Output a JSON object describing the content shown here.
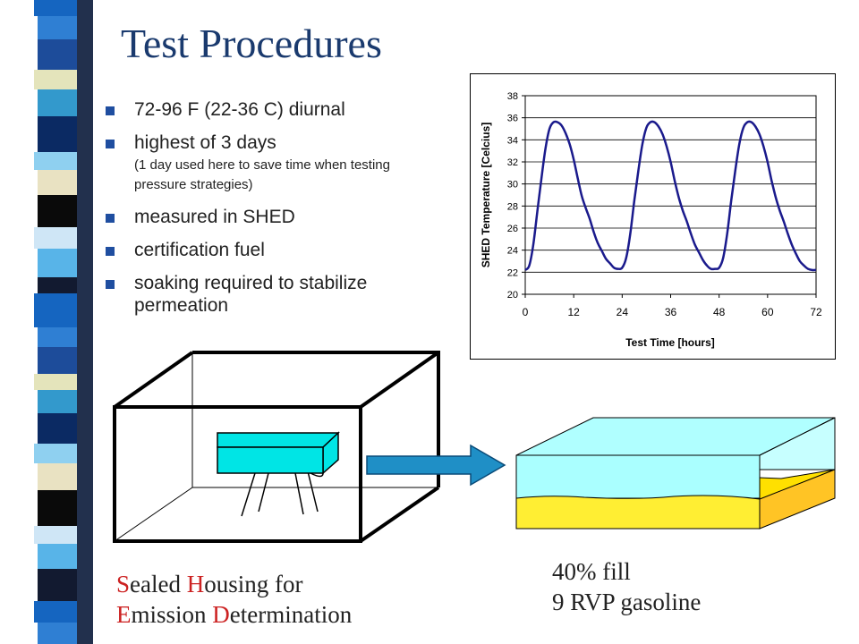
{
  "title": "Test Procedures",
  "bullets": [
    {
      "text": "72-96 F (22-36 C) diurnal",
      "sub": ""
    },
    {
      "text": "highest of 3 days",
      "sub": "(1 day used here to save time when testing pressure strategies)"
    },
    {
      "text": "measured in SHED",
      "sub": ""
    },
    {
      "text": "certification fuel",
      "sub": ""
    },
    {
      "text": "soaking required to stabilize permeation",
      "sub": ""
    }
  ],
  "bullet_marker": "n",
  "chart_data": {
    "type": "line",
    "title": "",
    "xlabel": "Test Time [hours]",
    "ylabel": "SHED Temperature [Celcius]",
    "xlim": [
      0,
      72
    ],
    "ylim": [
      20,
      38
    ],
    "xticks": [
      0,
      12,
      24,
      36,
      48,
      60,
      72
    ],
    "yticks": [
      20,
      22,
      24,
      26,
      28,
      30,
      32,
      34,
      36,
      38
    ],
    "grid": "horizontal",
    "series": [
      {
        "color": "#1a1a8c",
        "x": [
          0,
          1,
          2,
          3,
          4,
          5,
          6,
          7,
          8,
          9,
          10,
          11,
          12,
          13,
          14,
          15,
          16,
          17,
          18,
          19,
          20,
          21,
          22,
          23,
          24,
          25,
          26,
          27,
          28,
          29,
          30,
          31,
          32,
          33,
          34,
          35,
          36,
          37,
          38,
          39,
          40,
          41,
          42,
          43,
          44,
          45,
          46,
          47,
          48,
          49,
          50,
          51,
          52,
          53,
          54,
          55,
          56,
          57,
          58,
          59,
          60,
          61,
          62,
          63,
          64,
          65,
          66,
          67,
          68,
          69,
          70,
          71,
          72
        ],
        "y": [
          22.2,
          22.6,
          24.5,
          27.5,
          30.5,
          33.2,
          35.0,
          35.6,
          35.6,
          35.3,
          34.6,
          33.6,
          32.2,
          30.5,
          28.9,
          27.8,
          26.8,
          25.6,
          24.6,
          23.9,
          23.2,
          22.8,
          22.4,
          22.3,
          22.4,
          23.3,
          25.5,
          28.5,
          31.2,
          33.6,
          35.1,
          35.6,
          35.6,
          35.2,
          34.5,
          33.4,
          32.0,
          30.3,
          28.8,
          27.6,
          26.6,
          25.5,
          24.5,
          23.8,
          23.1,
          22.6,
          22.3,
          22.3,
          22.4,
          23.3,
          25.5,
          28.5,
          31.2,
          33.6,
          35.1,
          35.6,
          35.6,
          35.2,
          34.5,
          33.4,
          32.0,
          30.3,
          28.8,
          27.6,
          26.6,
          25.5,
          24.5,
          23.7,
          23.0,
          22.6,
          22.3,
          22.2,
          22.2
        ]
      }
    ]
  },
  "caption_left": {
    "line1": [
      {
        "text": "S",
        "red": true
      },
      {
        "text": "ealed ",
        "red": false
      },
      {
        "text": "H",
        "red": true
      },
      {
        "text": "ousing  for",
        "red": false
      }
    ],
    "line2": [
      {
        "text": "E",
        "red": true
      },
      {
        "text": "mission  ",
        "red": false
      },
      {
        "text": "D",
        "red": true
      },
      {
        "text": "etermination",
        "red": false
      }
    ]
  },
  "caption_right": {
    "line1": "40% fill",
    "line2": "9 RVP gasoline"
  },
  "colors": {
    "title": "#1a3a6e",
    "bullet": "#1f4ea0",
    "caption_red": "#cc2222",
    "tank_cyan": "#00e5e5",
    "liquid_yellow": "#ffee33",
    "arrow_blue": "#1f8fc6",
    "curve": "#1a1a8c"
  }
}
